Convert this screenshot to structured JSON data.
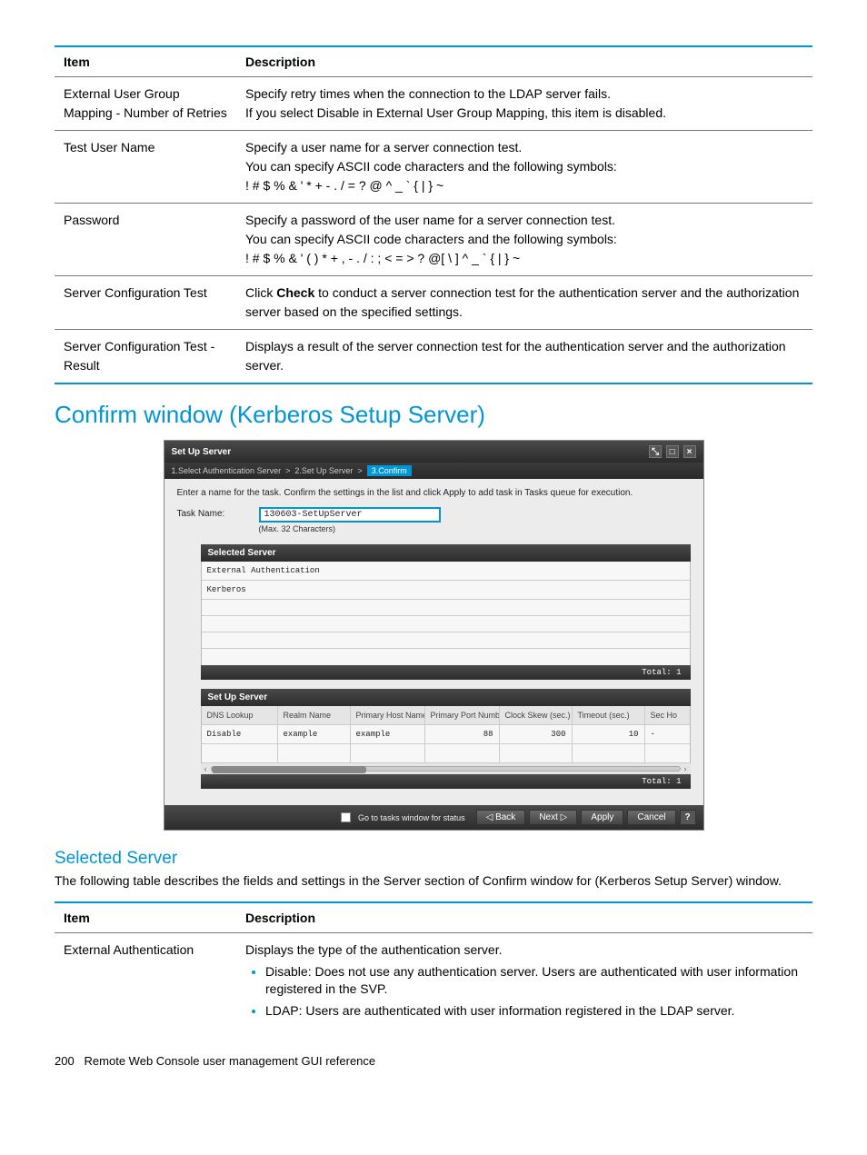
{
  "table1": {
    "header": {
      "item": "Item",
      "desc": "Description"
    },
    "rows": [
      {
        "item": "External User Group Mapping - Number of Retries",
        "lines": [
          "Specify retry times when the connection to the LDAP server fails.",
          "If you select Disable in External User Group Mapping, this item is disabled."
        ]
      },
      {
        "item": "Test User Name",
        "lines": [
          "Specify a user name for a server connection test.",
          "You can specify ASCII code characters and the following symbols:",
          "! # $ % & ' * + - . / = ? @ ^ _ ` { | } ~"
        ]
      },
      {
        "item": "Password",
        "lines": [
          "Specify a password of the user name for a server connection test.",
          "You can specify ASCII code characters and the following symbols:",
          "! # $ % & ' ( ) * + , - . / : ; < = > ? @[ \\ ] ^ _ ` { | } ~"
        ]
      },
      {
        "item": "Server Configuration Test",
        "desc_prefix": "Click ",
        "desc_bold": "Check",
        "desc_suffix": " to conduct a server connection test for the authentication server and the authorization server based on the specified settings."
      },
      {
        "item": "Server Configuration Test - Result",
        "lines": [
          "Displays a result of the server connection test for the authentication server and the authorization server."
        ]
      }
    ]
  },
  "section_title": "Confirm window (Kerberos Setup Server)",
  "screenshot": {
    "title": "Set Up Server",
    "crumb": {
      "step1": "1.Select Authentication Server",
      "sep": ">",
      "step2": "2.Set Up Server",
      "step3": "3.Confirm"
    },
    "instruction": "Enter a name for the task. Confirm the settings in the list and click Apply to add task in Tasks queue for execution.",
    "task_label": "Task Name:",
    "task_value": "130603-SetUpServer",
    "task_hint": "(Max. 32 Characters)",
    "selected_server": {
      "title": "Selected Server",
      "rows": [
        "External Authentication",
        "Kerberos"
      ],
      "total": "Total: 1"
    },
    "setup_server": {
      "title": "Set Up Server",
      "headers": {
        "a": "DNS Lookup",
        "b": "Realm Name",
        "c": "Primary Host Name",
        "d": "Primary Port Number",
        "e": "Clock Skew (sec.)",
        "f": "Timeout (sec.)",
        "g": "Sec Ho"
      },
      "row": {
        "a": "Disable",
        "b": "example",
        "c": "example",
        "d": "88",
        "e": "300",
        "f": "10",
        "g": "-"
      },
      "total": "Total: 1"
    },
    "footer": {
      "go_label": "Go to tasks window for status",
      "back": "◁ Back",
      "next": "Next ▷",
      "apply": "Apply",
      "cancel": "Cancel",
      "help": "?"
    }
  },
  "subsection_title": "Selected Server",
  "subsection_intro": "The following table describes the fields and settings in the Server section of Confirm window for (Kerberos Setup Server) window.",
  "table2": {
    "header": {
      "item": "Item",
      "desc": "Description"
    },
    "rows": [
      {
        "item": "External Authentication",
        "lead": "Displays the type of the authentication server.",
        "bullets": [
          "Disable: Does not use any authentication server. Users are authenticated with user information registered in the SVP.",
          "LDAP: Users are authenticated with user information registered in the LDAP server."
        ]
      }
    ]
  },
  "page_footer": {
    "num": "200",
    "text": "Remote Web Console user management GUI reference"
  }
}
